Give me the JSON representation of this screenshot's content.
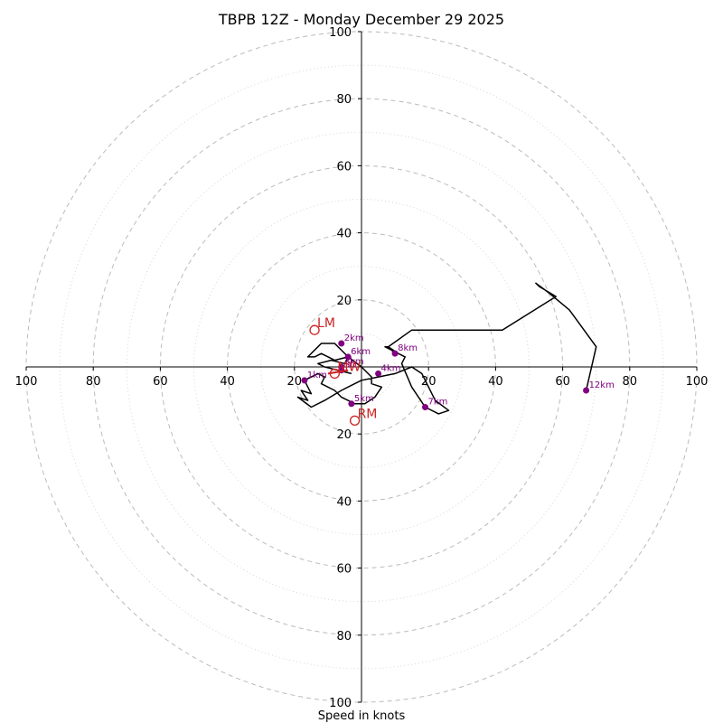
{
  "chart_data": {
    "type": "hodograph",
    "title": "TBPB 12Z - Monday December 29 2025",
    "xlabel": "Speed in knots",
    "range": [
      -100,
      100
    ],
    "ring_labels": [
      "100",
      "80",
      "60",
      "40",
      "20",
      "20",
      "40",
      "60",
      "80",
      "100"
    ],
    "ring_values": [
      20,
      40,
      60,
      80,
      100
    ],
    "hodograph_path": [
      [
        -3,
        -2
      ],
      [
        -7,
        -1
      ],
      [
        -11,
        0
      ],
      [
        -13,
        1
      ],
      [
        -9,
        2
      ],
      [
        -5,
        1
      ],
      [
        -4,
        3
      ],
      [
        -8,
        2
      ],
      [
        -12,
        4
      ],
      [
        -14,
        3
      ],
      [
        -16,
        3
      ],
      [
        -12,
        7
      ],
      [
        -8,
        7
      ],
      [
        -6,
        5
      ],
      [
        -4,
        3
      ],
      [
        0,
        0
      ],
      [
        3,
        -3
      ],
      [
        3,
        -5
      ],
      [
        6,
        -6
      ],
      [
        4,
        -9
      ],
      [
        1,
        -11
      ],
      [
        -2,
        -11
      ],
      [
        -4,
        -10
      ],
      [
        -6,
        -9
      ],
      [
        -8,
        -7
      ],
      [
        -12,
        -5
      ],
      [
        -11,
        -3
      ],
      [
        -13,
        -2
      ],
      [
        -17,
        -4
      ],
      [
        -15,
        -8
      ],
      [
        -18,
        -7
      ],
      [
        -16,
        -10
      ],
      [
        -19,
        -9
      ],
      [
        -15,
        -12
      ],
      [
        -11,
        -10
      ],
      [
        -6,
        -7
      ],
      [
        0,
        -4
      ],
      [
        5,
        -3
      ],
      [
        10,
        -2
      ],
      [
        15,
        0
      ],
      [
        18,
        -2
      ],
      [
        22,
        -10
      ],
      [
        26,
        -13
      ],
      [
        23,
        -14
      ],
      [
        19,
        -12
      ],
      [
        15,
        -6
      ],
      [
        12,
        1
      ],
      [
        13,
        3
      ],
      [
        9,
        5
      ],
      [
        7,
        6
      ],
      [
        8,
        6
      ],
      [
        10,
        4
      ],
      [
        11,
        4
      ],
      [
        8,
        6
      ],
      [
        15,
        11
      ],
      [
        42,
        11
      ],
      [
        58,
        21
      ],
      [
        53,
        24
      ],
      [
        52,
        25
      ],
      [
        56,
        22
      ],
      [
        62,
        17
      ],
      [
        70,
        6
      ],
      [
        67,
        -7
      ]
    ],
    "height_markers": [
      {
        "label": "Sfc",
        "u": -6,
        "v": -1
      },
      {
        "label": "1km",
        "u": -17,
        "v": -4
      },
      {
        "label": "2km",
        "u": -6,
        "v": 7
      },
      {
        "label": "3km",
        "u": -6,
        "v": 0
      },
      {
        "label": "4km",
        "u": 5,
        "v": -2
      },
      {
        "label": "5km",
        "u": -3,
        "v": -11
      },
      {
        "label": "6km",
        "u": -4,
        "v": 3
      },
      {
        "label": "7km",
        "u": 19,
        "v": -12
      },
      {
        "label": "8km",
        "u": 10,
        "v": 4
      },
      {
        "label": "12km",
        "u": 67,
        "v": -7
      }
    ],
    "storm_motion": [
      {
        "label": "LM",
        "u": -14,
        "v": 11
      },
      {
        "label": "RM",
        "u": -2,
        "v": -16
      },
      {
        "label": "MW",
        "u": -8,
        "v": -2
      }
    ],
    "mean_wind_arrow": {
      "from": [
        -10,
        -2
      ],
      "to": [
        -4,
        -1
      ]
    },
    "colors": {
      "path": "#000000",
      "markers": "#800080",
      "storm": "#cc2222",
      "rings": "#bbbbbb"
    }
  }
}
